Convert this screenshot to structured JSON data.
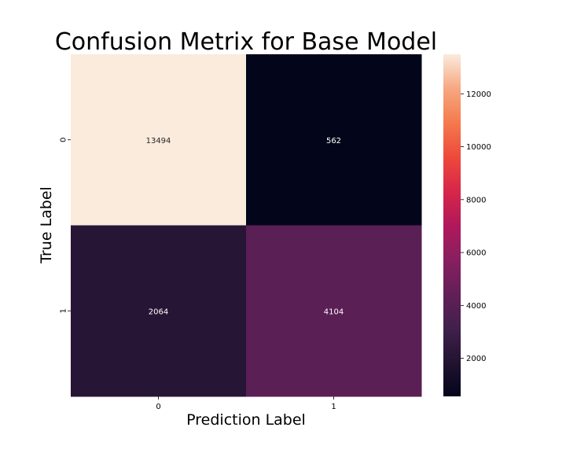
{
  "chart_data": {
    "type": "heatmap",
    "title": "Confusion Metrix for Base Model",
    "xlabel": "Prediction Label",
    "ylabel": "True Label",
    "x_categories": [
      "0",
      "1"
    ],
    "y_categories": [
      "0",
      "1"
    ],
    "values": [
      [
        13494,
        562
      ],
      [
        2064,
        4104
      ]
    ],
    "colormap": "rocket",
    "color_range": [
      562,
      13494
    ],
    "colorbar_ticks": [
      2000,
      4000,
      6000,
      8000,
      10000,
      12000
    ],
    "annotation_colors": {
      "light_cell": "#262626",
      "dark_cell": "#ffffff"
    }
  }
}
